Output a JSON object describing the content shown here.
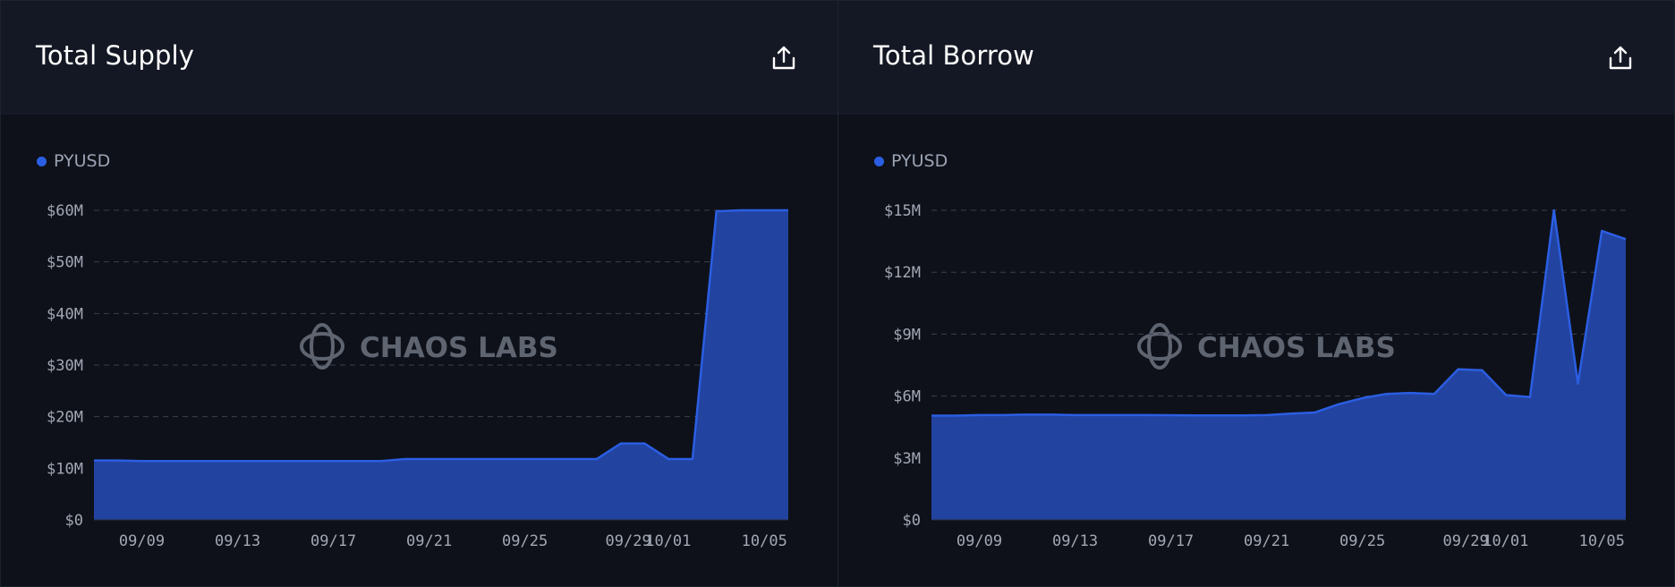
{
  "panels": [
    {
      "title": "Total Supply",
      "legend": "PYUSD"
    },
    {
      "title": "Total Borrow",
      "legend": "PYUSD"
    }
  ],
  "watermark": "CHAOS LABS",
  "colors": {
    "series": "#2b5ee3",
    "fill": "#2447a6",
    "grid": "#3a4050",
    "background": "#0e1119",
    "header": "#141824"
  },
  "chart_data": [
    {
      "type": "area",
      "title": "Total Supply",
      "xlabel": "",
      "ylabel": "",
      "series": [
        {
          "name": "PYUSD"
        }
      ],
      "x_ticks": [
        "09/09",
        "09/13",
        "09/17",
        "09/21",
        "09/25",
        "09/29",
        "10/01",
        "10/05"
      ],
      "y_ticks": [
        "$0",
        "$10M",
        "$20M",
        "$30M",
        "$40M",
        "$50M",
        "$60M"
      ],
      "ylim": [
        0,
        60000000
      ],
      "grid": true,
      "legend_position": "top-left",
      "x": [
        "09/07",
        "09/08",
        "09/09",
        "09/10",
        "09/11",
        "09/12",
        "09/13",
        "09/14",
        "09/15",
        "09/16",
        "09/17",
        "09/18",
        "09/19",
        "09/20",
        "09/21",
        "09/22",
        "09/23",
        "09/24",
        "09/25",
        "09/26",
        "09/27",
        "09/28",
        "09/29",
        "09/30",
        "10/01",
        "10/02",
        "10/03",
        "10/04",
        "10/05",
        "10/06"
      ],
      "values": [
        11500000,
        11500000,
        11400000,
        11400000,
        11400000,
        11400000,
        11400000,
        11400000,
        11400000,
        11400000,
        11400000,
        11400000,
        11400000,
        11800000,
        11800000,
        11800000,
        11800000,
        11800000,
        11800000,
        11800000,
        11800000,
        11800000,
        14800000,
        14800000,
        11800000,
        11800000,
        59800000,
        60000000,
        60000000,
        60000000
      ]
    },
    {
      "type": "area",
      "title": "Total Borrow",
      "xlabel": "",
      "ylabel": "",
      "series": [
        {
          "name": "PYUSD"
        }
      ],
      "x_ticks": [
        "09/09",
        "09/13",
        "09/17",
        "09/21",
        "09/25",
        "09/29",
        "10/01",
        "10/05"
      ],
      "y_ticks": [
        "$0",
        "$3M",
        "$6M",
        "$9M",
        "$12M",
        "$15M"
      ],
      "ylim": [
        0,
        15000000
      ],
      "grid": true,
      "legend_position": "top-left",
      "x": [
        "09/07",
        "09/08",
        "09/09",
        "09/10",
        "09/11",
        "09/12",
        "09/13",
        "09/14",
        "09/15",
        "09/16",
        "09/17",
        "09/18",
        "09/19",
        "09/20",
        "09/21",
        "09/22",
        "09/23",
        "09/24",
        "09/25",
        "09/26",
        "09/27",
        "09/28",
        "09/29",
        "09/30",
        "10/01",
        "10/02",
        "10/03",
        "10/04",
        "10/05",
        "10/06"
      ],
      "values": [
        5050000,
        5050000,
        5080000,
        5080000,
        5100000,
        5100000,
        5080000,
        5080000,
        5080000,
        5080000,
        5070000,
        5060000,
        5060000,
        5060000,
        5080000,
        5150000,
        5200000,
        5600000,
        5900000,
        6100000,
        6150000,
        6100000,
        7300000,
        7250000,
        6050000,
        5950000,
        15000000,
        6600000,
        14000000,
        13600000
      ]
    }
  ]
}
